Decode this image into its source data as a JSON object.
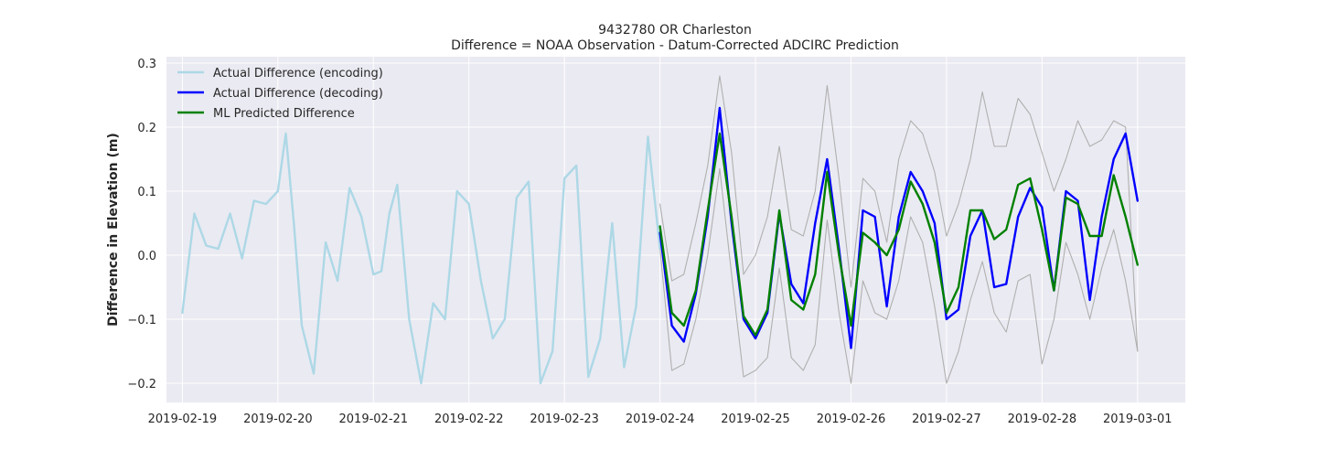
{
  "chart_data": {
    "type": "line",
    "title_lines": [
      "9432780 OR Charleston",
      "Difference = NOAA Observation - Datum-Corrected ADCIRC Prediction"
    ],
    "xlabel": "",
    "ylabel": "Difference in Elevation (m)",
    "x_ticks": [
      "2019-02-19",
      "2019-02-20",
      "2019-02-21",
      "2019-02-22",
      "2019-02-23",
      "2019-02-24",
      "2019-02-25",
      "2019-02-26",
      "2019-02-27",
      "2019-02-28",
      "2019-03-01"
    ],
    "y_ticks": [
      "−0.2",
      "−0.1",
      "0.0",
      "0.1",
      "0.2",
      "0.3"
    ],
    "xlim": [
      "2019-02-18T20:00",
      "2019-03-01T12:00"
    ],
    "ylim": [
      -0.23,
      0.31
    ],
    "grid": true,
    "background": "#eaeaf2",
    "legend_position": "upper-left",
    "series": [
      {
        "name": "Actual Difference (encoding)",
        "color": "#add8e6",
        "x": [
          "2019-02-19T00:00",
          "2019-02-19T03:00",
          "2019-02-19T06:00",
          "2019-02-19T09:00",
          "2019-02-19T12:00",
          "2019-02-19T15:00",
          "2019-02-19T18:00",
          "2019-02-19T21:00",
          "2019-02-20T00:00",
          "2019-02-20T02:00",
          "2019-02-20T04:00",
          "2019-02-20T06:00",
          "2019-02-20T09:00",
          "2019-02-20T12:00",
          "2019-02-20T15:00",
          "2019-02-20T18:00",
          "2019-02-20T21:00",
          "2019-02-21T00:00",
          "2019-02-21T02:00",
          "2019-02-21T04:00",
          "2019-02-21T06:00",
          "2019-02-21T09:00",
          "2019-02-21T12:00",
          "2019-02-21T15:00",
          "2019-02-21T18:00",
          "2019-02-21T21:00",
          "2019-02-22T00:00",
          "2019-02-22T03:00",
          "2019-02-22T06:00",
          "2019-02-22T09:00",
          "2019-02-22T12:00",
          "2019-02-22T15:00",
          "2019-02-22T18:00",
          "2019-02-22T21:00",
          "2019-02-23T00:00",
          "2019-02-23T03:00",
          "2019-02-23T06:00",
          "2019-02-23T09:00",
          "2019-02-23T12:00",
          "2019-02-23T15:00",
          "2019-02-23T18:00",
          "2019-02-23T21:00",
          "2019-02-24T00:00"
        ],
        "values": [
          -0.09,
          0.065,
          0.015,
          0.01,
          0.065,
          -0.005,
          0.085,
          0.08,
          0.1,
          0.19,
          0.05,
          -0.11,
          -0.185,
          0.02,
          -0.04,
          0.105,
          0.06,
          -0.03,
          -0.025,
          0.065,
          0.11,
          -0.1,
          -0.2,
          -0.075,
          -0.1,
          0.1,
          0.08,
          -0.04,
          -0.13,
          -0.1,
          0.09,
          0.115,
          -0.2,
          -0.15,
          0.12,
          0.14,
          -0.19,
          -0.13,
          0.05,
          -0.175,
          -0.08,
          0.185,
          0.01
        ]
      },
      {
        "name": "Actual Difference (decoding)",
        "color": "#0000ff",
        "x": [
          "2019-02-24T00:00",
          "2019-02-24T03:00",
          "2019-02-24T06:00",
          "2019-02-24T09:00",
          "2019-02-24T12:00",
          "2019-02-24T15:00",
          "2019-02-24T18:00",
          "2019-02-24T21:00",
          "2019-02-25T00:00",
          "2019-02-25T03:00",
          "2019-02-25T06:00",
          "2019-02-25T09:00",
          "2019-02-25T12:00",
          "2019-02-25T15:00",
          "2019-02-25T18:00",
          "2019-02-25T21:00",
          "2019-02-26T00:00",
          "2019-02-26T03:00",
          "2019-02-26T06:00",
          "2019-02-26T09:00",
          "2019-02-26T12:00",
          "2019-02-26T15:00",
          "2019-02-26T18:00",
          "2019-02-26T21:00",
          "2019-02-27T00:00",
          "2019-02-27T03:00",
          "2019-02-27T06:00",
          "2019-02-27T09:00",
          "2019-02-27T12:00",
          "2019-02-27T15:00",
          "2019-02-27T18:00",
          "2019-02-27T21:00",
          "2019-02-28T00:00",
          "2019-02-28T03:00",
          "2019-02-28T06:00",
          "2019-02-28T09:00",
          "2019-02-28T12:00",
          "2019-02-28T15:00",
          "2019-02-28T18:00",
          "2019-02-28T21:00",
          "2019-03-01T00:00"
        ],
        "values": [
          0.035,
          -0.11,
          -0.135,
          -0.06,
          0.06,
          0.23,
          0.05,
          -0.1,
          -0.13,
          -0.09,
          0.065,
          -0.045,
          -0.075,
          0.05,
          0.15,
          0.01,
          -0.145,
          0.07,
          0.06,
          -0.08,
          0.06,
          0.13,
          0.1,
          0.05,
          -0.1,
          -0.085,
          0.03,
          0.07,
          -0.05,
          -0.045,
          0.06,
          0.105,
          0.075,
          -0.055,
          0.1,
          0.085,
          -0.07,
          0.06,
          0.15,
          0.19,
          0.085
        ]
      },
      {
        "name": "ML Predicted Difference",
        "color": "#008000",
        "x": [
          "2019-02-24T00:00",
          "2019-02-24T03:00",
          "2019-02-24T06:00",
          "2019-02-24T09:00",
          "2019-02-24T12:00",
          "2019-02-24T15:00",
          "2019-02-24T18:00",
          "2019-02-24T21:00",
          "2019-02-25T00:00",
          "2019-02-25T03:00",
          "2019-02-25T06:00",
          "2019-02-25T09:00",
          "2019-02-25T12:00",
          "2019-02-25T15:00",
          "2019-02-25T18:00",
          "2019-02-25T21:00",
          "2019-02-26T00:00",
          "2019-02-26T03:00",
          "2019-02-26T06:00",
          "2019-02-26T09:00",
          "2019-02-26T12:00",
          "2019-02-26T15:00",
          "2019-02-26T18:00",
          "2019-02-26T21:00",
          "2019-02-27T00:00",
          "2019-02-27T03:00",
          "2019-02-27T06:00",
          "2019-02-27T09:00",
          "2019-02-27T12:00",
          "2019-02-27T15:00",
          "2019-02-27T18:00",
          "2019-02-27T21:00",
          "2019-02-28T00:00",
          "2019-02-28T03:00",
          "2019-02-28T06:00",
          "2019-02-28T09:00",
          "2019-02-28T12:00",
          "2019-02-28T15:00",
          "2019-02-28T18:00",
          "2019-02-28T21:00",
          "2019-03-01T00:00"
        ],
        "values": [
          0.045,
          -0.09,
          -0.11,
          -0.055,
          0.07,
          0.19,
          0.06,
          -0.095,
          -0.125,
          -0.085,
          0.07,
          -0.07,
          -0.085,
          -0.03,
          0.13,
          0.0,
          -0.11,
          0.035,
          0.02,
          0.0,
          0.04,
          0.115,
          0.08,
          0.02,
          -0.09,
          -0.05,
          0.07,
          0.07,
          0.025,
          0.04,
          0.11,
          0.12,
          0.04,
          -0.055,
          0.09,
          0.08,
          0.03,
          0.03,
          0.125,
          0.06,
          -0.015
        ]
      },
      {
        "name": "",
        "color": "#b0b0b0",
        "band": "upper",
        "x": [
          "2019-02-24T00:00",
          "2019-02-24T03:00",
          "2019-02-24T06:00",
          "2019-02-24T09:00",
          "2019-02-24T12:00",
          "2019-02-24T15:00",
          "2019-02-24T18:00",
          "2019-02-24T21:00",
          "2019-02-25T00:00",
          "2019-02-25T03:00",
          "2019-02-25T06:00",
          "2019-02-25T09:00",
          "2019-02-25T12:00",
          "2019-02-25T15:00",
          "2019-02-25T18:00",
          "2019-02-25T21:00",
          "2019-02-26T00:00",
          "2019-02-26T03:00",
          "2019-02-26T06:00",
          "2019-02-26T09:00",
          "2019-02-26T12:00",
          "2019-02-26T15:00",
          "2019-02-26T18:00",
          "2019-02-26T21:00",
          "2019-02-27T00:00",
          "2019-02-27T03:00",
          "2019-02-27T06:00",
          "2019-02-27T09:00",
          "2019-02-27T12:00",
          "2019-02-27T15:00",
          "2019-02-27T18:00",
          "2019-02-27T21:00",
          "2019-02-28T00:00",
          "2019-02-28T03:00",
          "2019-02-28T06:00",
          "2019-02-28T09:00",
          "2019-02-28T12:00",
          "2019-02-28T15:00",
          "2019-02-28T18:00",
          "2019-02-28T21:00",
          "2019-03-01T00:00"
        ],
        "values": [
          0.08,
          -0.04,
          -0.03,
          0.05,
          0.14,
          0.28,
          0.16,
          -0.03,
          0.0,
          0.06,
          0.17,
          0.04,
          0.03,
          0.1,
          0.265,
          0.12,
          -0.05,
          0.12,
          0.1,
          0.02,
          0.15,
          0.21,
          0.19,
          0.13,
          0.03,
          0.08,
          0.15,
          0.255,
          0.17,
          0.17,
          0.245,
          0.22,
          0.16,
          0.1,
          0.15,
          0.21,
          0.17,
          0.18,
          0.21,
          0.2,
          -0.15
        ]
      },
      {
        "name": "",
        "color": "#b0b0b0",
        "band": "lower",
        "x": [
          "2019-02-24T00:00",
          "2019-02-24T03:00",
          "2019-02-24T06:00",
          "2019-02-24T09:00",
          "2019-02-24T12:00",
          "2019-02-24T15:00",
          "2019-02-24T18:00",
          "2019-02-24T21:00",
          "2019-02-25T00:00",
          "2019-02-25T03:00",
          "2019-02-25T06:00",
          "2019-02-25T09:00",
          "2019-02-25T12:00",
          "2019-02-25T15:00",
          "2019-02-25T18:00",
          "2019-02-25T21:00",
          "2019-02-26T00:00",
          "2019-02-26T03:00",
          "2019-02-26T06:00",
          "2019-02-26T09:00",
          "2019-02-26T12:00",
          "2019-02-26T15:00",
          "2019-02-26T18:00",
          "2019-02-26T21:00",
          "2019-02-27T00:00",
          "2019-02-27T03:00",
          "2019-02-27T06:00",
          "2019-02-27T09:00",
          "2019-02-27T12:00",
          "2019-02-27T15:00",
          "2019-02-27T18:00",
          "2019-02-27T21:00",
          "2019-02-28T00:00",
          "2019-02-28T03:00",
          "2019-02-28T06:00",
          "2019-02-28T09:00",
          "2019-02-28T12:00",
          "2019-02-28T15:00",
          "2019-02-28T18:00",
          "2019-02-28T21:00",
          "2019-03-01T00:00"
        ],
        "values": [
          0.01,
          -0.18,
          -0.17,
          -0.1,
          0.0,
          0.135,
          -0.03,
          -0.19,
          -0.18,
          -0.16,
          -0.02,
          -0.16,
          -0.18,
          -0.14,
          0.055,
          -0.09,
          -0.2,
          -0.04,
          -0.09,
          -0.1,
          -0.04,
          0.06,
          0.02,
          -0.08,
          -0.2,
          -0.15,
          -0.07,
          -0.01,
          -0.09,
          -0.12,
          -0.04,
          -0.03,
          -0.17,
          -0.1,
          0.02,
          -0.03,
          -0.1,
          -0.02,
          0.04,
          -0.04,
          -0.15
        ]
      }
    ]
  }
}
